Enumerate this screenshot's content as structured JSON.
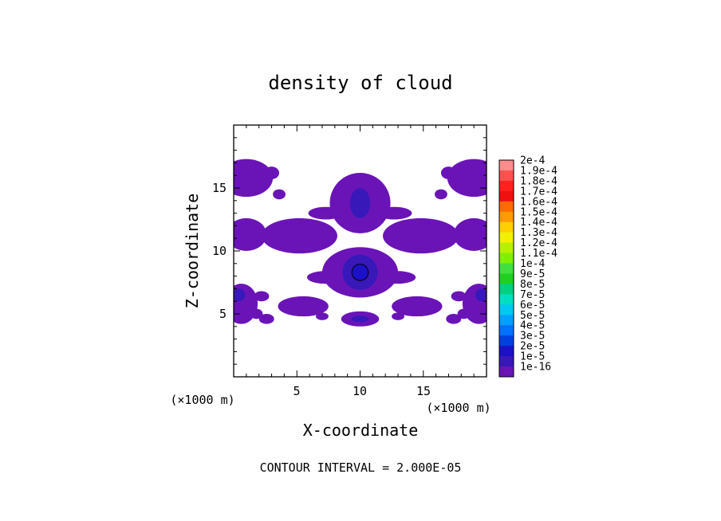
{
  "chart_data": {
    "type": "heatmap",
    "title": "density of cloud",
    "xlabel": "X-coordinate",
    "ylabel": "Z-coordinate",
    "x_unit": "(×1000 m)",
    "z_unit": "(×1000 m)",
    "xlim": [
      0,
      20
    ],
    "ylim": [
      0,
      20
    ],
    "x_ticks": [
      "5",
      "10",
      "15"
    ],
    "y_ticks": [
      "5",
      "10",
      "15"
    ],
    "footer": "CONTOUR INTERVAL = 2.000E-05",
    "colorbar": {
      "labels": [
        "2e-4",
        "1.9e-4",
        "1.8e-4",
        "1.7e-4",
        "1.6e-4",
        "1.5e-4",
        "1.4e-4",
        "1.3e-4",
        "1.2e-4",
        "1.1e-4",
        "1e-4",
        "9e-5",
        "8e-5",
        "7e-5",
        "6e-5",
        "5e-5",
        "4e-5",
        "3e-5",
        "2e-5",
        "1e-5",
        "1e-16"
      ],
      "colors": [
        "#ff8c8c",
        "#ff5050",
        "#ff2020",
        "#f01010",
        "#ff6a00",
        "#ff9a00",
        "#ffd000",
        "#f0f000",
        "#b8f000",
        "#80f000",
        "#40e040",
        "#20d020",
        "#00d080",
        "#00e0c0",
        "#00c8f0",
        "#00a0ff",
        "#0070ff",
        "#0040e0",
        "#1c10c8",
        "#3818b8",
        "#6a14b8"
      ]
    },
    "fields": [
      {
        "level": 1,
        "shape": "ellipse",
        "cx": 10,
        "cz": 8.3,
        "rx": 3.0,
        "rz": 2.0
      },
      {
        "level": 1,
        "shape": "ellipse",
        "cx": 10,
        "cz": 13.8,
        "rx": 2.4,
        "rz": 2.4
      },
      {
        "level": 1,
        "shape": "ellipse",
        "cx": 10,
        "cz": 4.6,
        "rx": 1.5,
        "rz": 0.6
      },
      {
        "level": 1,
        "shape": "ellipse",
        "cx": 7.2,
        "cz": 7.9,
        "rx": 1.4,
        "rz": 0.5
      },
      {
        "level": 1,
        "shape": "ellipse",
        "cx": 13,
        "cz": 7.9,
        "rx": 1.4,
        "rz": 0.5
      },
      {
        "level": 1,
        "shape": "ellipse",
        "cx": 5.5,
        "cz": 5.6,
        "rx": 2.0,
        "rz": 0.8
      },
      {
        "level": 1,
        "shape": "ellipse",
        "cx": 14.5,
        "cz": 5.6,
        "rx": 2.0,
        "rz": 0.8
      },
      {
        "level": 1,
        "shape": "ellipse",
        "cx": 5.2,
        "cz": 11.2,
        "rx": 3.0,
        "rz": 1.4
      },
      {
        "level": 1,
        "shape": "ellipse",
        "cx": 14.8,
        "cz": 11.2,
        "rx": 3.0,
        "rz": 1.4
      },
      {
        "level": 1,
        "shape": "ellipse",
        "cx": 1.0,
        "cz": 11.3,
        "rx": 1.6,
        "rz": 1.3
      },
      {
        "level": 1,
        "shape": "ellipse",
        "cx": 19.0,
        "cz": 11.3,
        "rx": 1.6,
        "rz": 1.3
      },
      {
        "level": 1,
        "shape": "ellipse",
        "cx": 1.0,
        "cz": 15.8,
        "rx": 2.1,
        "rz": 1.5
      },
      {
        "level": 1,
        "shape": "ellipse",
        "cx": 19.0,
        "cz": 15.8,
        "rx": 2.1,
        "rz": 1.5
      },
      {
        "level": 1,
        "shape": "ellipse",
        "cx": 3.0,
        "cz": 16.2,
        "rx": 0.6,
        "rz": 0.5
      },
      {
        "level": 1,
        "shape": "ellipse",
        "cx": 17.0,
        "cz": 16.2,
        "rx": 0.6,
        "rz": 0.5
      },
      {
        "level": 1,
        "shape": "ellipse",
        "cx": 3.6,
        "cz": 14.5,
        "rx": 0.5,
        "rz": 0.4
      },
      {
        "level": 1,
        "shape": "ellipse",
        "cx": 16.4,
        "cz": 14.5,
        "rx": 0.5,
        "rz": 0.4
      },
      {
        "level": 1,
        "shape": "ellipse",
        "cx": 7.3,
        "cz": 13.0,
        "rx": 1.4,
        "rz": 0.5
      },
      {
        "level": 1,
        "shape": "ellipse",
        "cx": 12.7,
        "cz": 13.0,
        "rx": 1.4,
        "rz": 0.5
      },
      {
        "level": 1,
        "shape": "ellipse",
        "cx": 0.6,
        "cz": 5.8,
        "rx": 1.3,
        "rz": 1.6
      },
      {
        "level": 1,
        "shape": "ellipse",
        "cx": 19.4,
        "cz": 5.8,
        "rx": 1.3,
        "rz": 1.6
      },
      {
        "level": 1,
        "shape": "ellipse",
        "cx": 2.2,
        "cz": 6.4,
        "rx": 0.6,
        "rz": 0.4
      },
      {
        "level": 1,
        "shape": "ellipse",
        "cx": 17.8,
        "cz": 6.4,
        "rx": 0.6,
        "rz": 0.4
      },
      {
        "level": 1,
        "shape": "ellipse",
        "cx": 1.8,
        "cz": 5.0,
        "rx": 0.5,
        "rz": 0.4
      },
      {
        "level": 1,
        "shape": "ellipse",
        "cx": 18.2,
        "cz": 5.0,
        "rx": 0.5,
        "rz": 0.4
      },
      {
        "level": 1,
        "shape": "ellipse",
        "cx": 2.6,
        "cz": 4.6,
        "rx": 0.6,
        "rz": 0.4
      },
      {
        "level": 1,
        "shape": "ellipse",
        "cx": 17.4,
        "cz": 4.6,
        "rx": 0.6,
        "rz": 0.4
      },
      {
        "level": 1,
        "shape": "ellipse",
        "cx": 7.0,
        "cz": 4.8,
        "rx": 0.5,
        "rz": 0.3
      },
      {
        "level": 1,
        "shape": "ellipse",
        "cx": 13.0,
        "cz": 4.8,
        "rx": 0.5,
        "rz": 0.3
      },
      {
        "level": 2,
        "shape": "ellipse",
        "cx": 10,
        "cz": 8.3,
        "rx": 1.4,
        "rz": 1.4
      },
      {
        "level": 2,
        "shape": "ellipse",
        "cx": 10,
        "cz": 13.8,
        "rx": 0.8,
        "rz": 1.2
      },
      {
        "level": 2,
        "shape": "ellipse",
        "cx": 10,
        "cz": 4.6,
        "rx": 0.7,
        "rz": 0.25
      },
      {
        "level": 2,
        "shape": "ellipse",
        "cx": 0.4,
        "cz": 6.5,
        "rx": 0.5,
        "rz": 0.5
      },
      {
        "level": 2,
        "shape": "ellipse",
        "cx": 19.6,
        "cz": 6.5,
        "rx": 0.5,
        "rz": 0.5
      },
      {
        "level": 3,
        "shape": "ellipse",
        "cx": 10,
        "cz": 8.3,
        "rx": 0.65,
        "rz": 0.65
      }
    ]
  }
}
